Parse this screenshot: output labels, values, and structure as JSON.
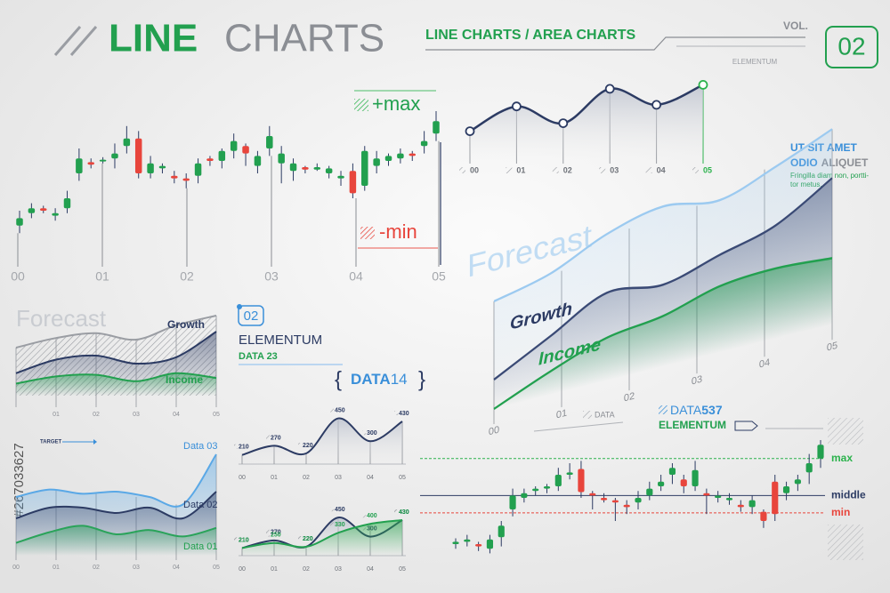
{
  "header": {
    "title_a": "LINE",
    "title_b": "CHARTS",
    "subtitle": "LINE CHARTS / AREA CHARTS",
    "vol": "VOL.",
    "number": "02",
    "brand": "ELEMENTUM"
  },
  "stock_id": "#267033627",
  "badge": {
    "number": "02",
    "title": "ELEMENTUM",
    "label": "DATA 23"
  },
  "data_heading": {
    "a": "DATA",
    "b": "14"
  },
  "info": {
    "line_1": "UT SIT AMET",
    "line_2a": "ODIO",
    "line_2b": "ALIQUET",
    "text": [
      "Fringilla diam non, portti-",
      "tor metus."
    ]
  },
  "small_label": "DATA",
  "chart_data": [
    {
      "type": "candlestick",
      "x_labels": [
        "00",
        "01",
        "02",
        "03",
        "04",
        "05"
      ],
      "annotations": {
        "max": "+max",
        "min": "-min"
      },
      "up_color": "#22a04f",
      "down_color": "#e8453c",
      "ylim": [
        0,
        100
      ],
      "open": [
        8,
        18,
        22,
        16,
        22,
        50,
        59,
        60,
        62,
        72,
        78,
        50,
        54,
        48,
        46,
        48,
        62,
        60,
        68,
        72,
        56,
        70,
        58,
        52,
        55,
        53,
        50,
        46,
        52,
        40,
        56,
        60,
        62,
        66,
        72,
        82
      ],
      "close": [
        14,
        22,
        20,
        18,
        30,
        62,
        57,
        61,
        66,
        78,
        50,
        58,
        56,
        46,
        44,
        58,
        60,
        68,
        76,
        66,
        64,
        80,
        66,
        58,
        53,
        55,
        54,
        48,
        34,
        68,
        62,
        64,
        66,
        64,
        76,
        92
      ],
      "high": [
        20,
        26,
        24,
        22,
        36,
        70,
        62,
        63,
        74,
        88,
        84,
        64,
        58,
        52,
        50,
        62,
        64,
        70,
        82,
        74,
        68,
        88,
        72,
        62,
        56,
        58,
        56,
        52,
        58,
        72,
        68,
        66,
        70,
        68,
        84,
        100
      ],
      "low": [
        2,
        14,
        18,
        12,
        18,
        44,
        54,
        58,
        54,
        66,
        46,
        46,
        50,
        42,
        38,
        42,
        56,
        54,
        62,
        56,
        50,
        64,
        42,
        44,
        50,
        52,
        46,
        40,
        30,
        36,
        50,
        56,
        58,
        60,
        66,
        76
      ]
    },
    {
      "type": "line",
      "categories": [
        "00",
        "01",
        "02",
        "03",
        "04",
        "05"
      ],
      "values": [
        36,
        67,
        46,
        89,
        69,
        94
      ],
      "color": "#2c3b63",
      "highlight_color": "#2bb24c",
      "ylim": [
        0,
        100
      ]
    },
    {
      "type": "area",
      "x_labels": [
        "00",
        "01",
        "02",
        "03",
        "04",
        "05"
      ],
      "ylim": [
        0,
        100
      ],
      "series": [
        {
          "name": "Forecast",
          "color": "#9ccaf0",
          "values": [
            55,
            62,
            75,
            82,
            78,
            88,
            100
          ]
        },
        {
          "name": "Growth",
          "color": "#3a4a75",
          "values": [
            15,
            30,
            45,
            42,
            50,
            58,
            75
          ]
        },
        {
          "name": "Income",
          "color": "#22a04f",
          "values": [
            0,
            12,
            22,
            26,
            34,
            36,
            34
          ]
        }
      ]
    },
    {
      "type": "area",
      "categories": [
        null,
        "01",
        "02",
        "03",
        "04",
        "05"
      ],
      "ylim": [
        0,
        100
      ],
      "series": [
        {
          "name": "Forecast",
          "color": "#9a9da3",
          "values": [
            60,
            72,
            78,
            70,
            88,
            100
          ]
        },
        {
          "name": "Growth",
          "color": "#2c3b63",
          "values": [
            28,
            45,
            50,
            40,
            48,
            80
          ]
        },
        {
          "name": "Income",
          "color": "#22a04f",
          "values": [
            15,
            24,
            26,
            18,
            28,
            22
          ]
        }
      ]
    },
    {
      "type": "line",
      "categories": [
        "00",
        "01",
        "02",
        "03",
        "04",
        "05"
      ],
      "values": [
        210,
        270,
        220,
        450,
        300,
        430
      ],
      "color": "#2c3b63",
      "ylim": [
        150,
        500
      ]
    },
    {
      "type": "line",
      "categories": [
        "00",
        "01",
        "02",
        "03",
        "04",
        "05"
      ],
      "ylim": [
        150,
        500
      ],
      "series": [
        {
          "color": "#2c3b63",
          "values": [
            210,
            270,
            220,
            450,
            300,
            430
          ]
        },
        {
          "color": "#22a04f",
          "values": [
            210,
            250,
            220,
            330,
            400,
            430
          ]
        }
      ]
    },
    {
      "type": "area",
      "x_labels": [
        "00",
        "01",
        "02",
        "03",
        "04",
        "05"
      ],
      "target": "TARGET",
      "ylim": [
        0,
        100
      ],
      "series": [
        {
          "name": "Data 03",
          "color": "#5aa8e6",
          "values": [
            55,
            62,
            58,
            60,
            55,
            48,
            95
          ]
        },
        {
          "name": "Data 02",
          "color": "#2c3b63",
          "values": [
            35,
            45,
            45,
            40,
            45,
            35,
            60
          ]
        },
        {
          "name": "Data 01",
          "color": "#2aa35a",
          "values": [
            12,
            22,
            28,
            20,
            24,
            18,
            26
          ]
        }
      ]
    },
    {
      "type": "candlestick",
      "title": {
        "a": "DATA",
        "b": "537"
      },
      "subtitle": "ELEMENTUM",
      "up_color": "#22a04f",
      "down_color": "#e8453c",
      "ylim": [
        0,
        100
      ],
      "levels": [
        {
          "name": "max",
          "value": 84,
          "color": "#2bb24c"
        },
        {
          "name": "middle",
          "value": 52,
          "color": "#2c3b63"
        },
        {
          "name": "min",
          "value": 37,
          "color": "#e8453c"
        }
      ],
      "open": [
        10,
        12,
        10,
        6,
        16,
        40,
        50,
        56,
        58,
        60,
        70,
        75,
        54,
        50,
        48,
        44,
        46,
        52,
        60,
        70,
        66,
        60,
        54,
        50,
        48,
        44,
        42,
        38,
        64,
        54,
        62,
        72,
        84
      ],
      "close": [
        12,
        14,
        8,
        14,
        26,
        52,
        54,
        58,
        60,
        70,
        72,
        55,
        52,
        48,
        46,
        42,
        50,
        58,
        64,
        76,
        60,
        74,
        52,
        52,
        50,
        42,
        48,
        30,
        36,
        60,
        66,
        80,
        96
      ],
      "high": [
        15,
        18,
        12,
        18,
        30,
        58,
        58,
        60,
        62,
        76,
        80,
        82,
        56,
        54,
        50,
        48,
        56,
        64,
        70,
        80,
        70,
        82,
        58,
        56,
        54,
        48,
        52,
        40,
        70,
        64,
        70,
        88,
        100
      ],
      "low": [
        6,
        8,
        4,
        2,
        8,
        34,
        46,
        52,
        54,
        56,
        66,
        50,
        40,
        46,
        30,
        36,
        40,
        48,
        56,
        62,
        54,
        56,
        36,
        46,
        44,
        38,
        36,
        24,
        30,
        48,
        56,
        62,
        76
      ]
    }
  ]
}
